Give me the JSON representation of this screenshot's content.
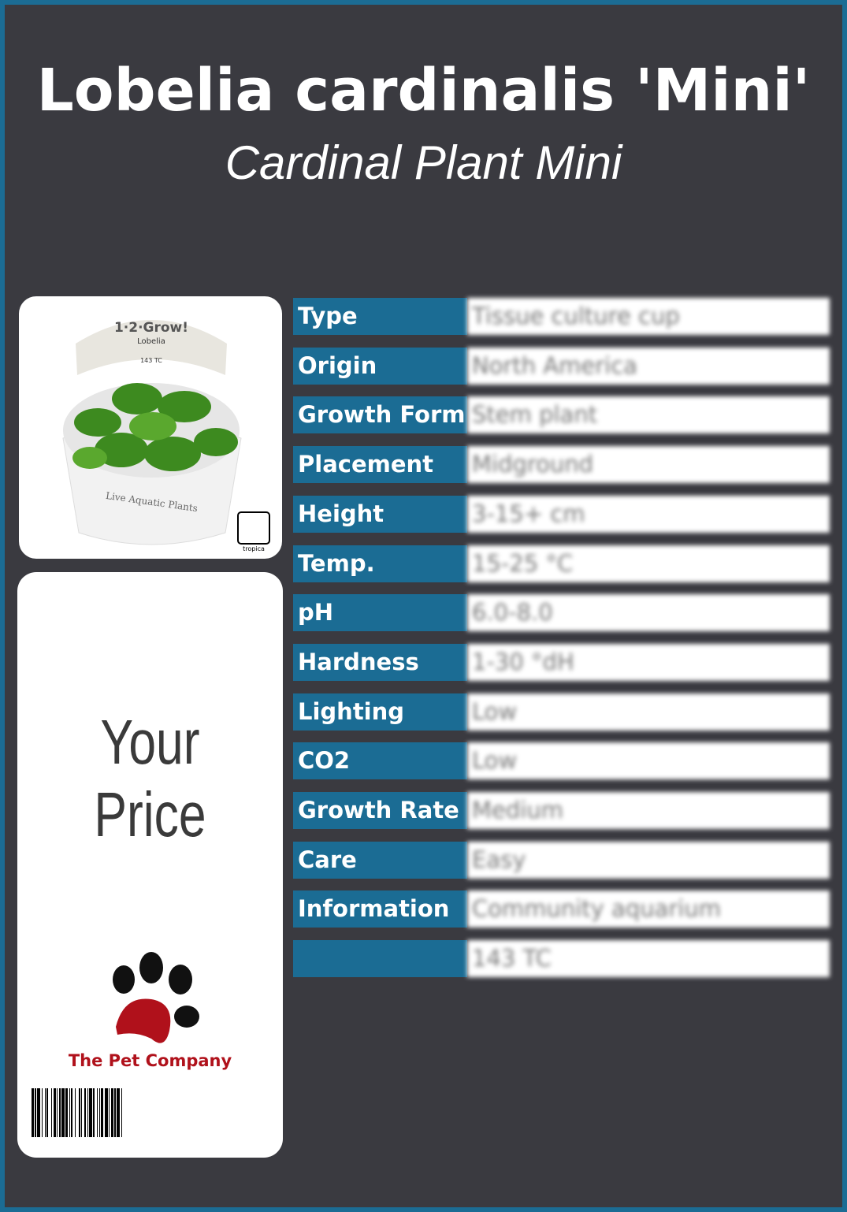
{
  "title": "Lobelia cardinalis 'Mini'",
  "subtitle": "Cardinal Plant Mini",
  "price_label": "Your Price",
  "brand": "The Pet Company",
  "colors": {
    "accent": "#1b6c94",
    "background": "#3a3a40",
    "brand_red": "#b0111b"
  },
  "photo": {
    "cup_brand": "1·2·Grow!",
    "cup_name": "Lobelia",
    "cup_code": "143 TC",
    "cup_text": "Live Aquatic Plants",
    "logo": "tropica"
  },
  "specs": [
    {
      "label": "Type",
      "value": "Tissue culture cup"
    },
    {
      "label": "Origin",
      "value": "North America"
    },
    {
      "label": "Growth Form",
      "value": "Stem plant"
    },
    {
      "label": "Placement",
      "value": "Midground"
    },
    {
      "label": "Height",
      "value": "3-15+ cm"
    },
    {
      "label": "Temp.",
      "value": "15-25 °C"
    },
    {
      "label": "pH",
      "value": "6.0-8.0"
    },
    {
      "label": "Hardness",
      "value": "1-30 °dH"
    },
    {
      "label": "Lighting",
      "value": "Low"
    },
    {
      "label": "CO2",
      "value": "Low"
    },
    {
      "label": "Growth Rate",
      "value": "Medium"
    },
    {
      "label": "Care",
      "value": "Easy"
    },
    {
      "label": "Information",
      "value": "Community aquarium"
    },
    {
      "label": "",
      "value": "143 TC"
    }
  ]
}
